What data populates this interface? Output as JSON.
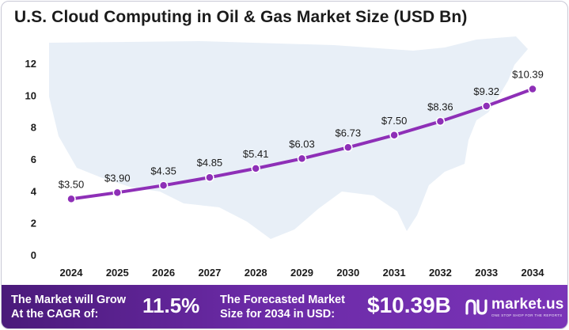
{
  "chart_data": {
    "type": "line",
    "title": "U.S. Cloud Computing in Oil & Gas Market Size (USD Bn)",
    "categories": [
      "2024",
      "2025",
      "2026",
      "2027",
      "2028",
      "2029",
      "2030",
      "2031",
      "2032",
      "2033",
      "2034"
    ],
    "values": [
      3.5,
      3.9,
      4.35,
      4.85,
      5.41,
      6.03,
      6.73,
      7.5,
      8.36,
      9.32,
      10.39
    ],
    "value_labels": [
      "$3.50",
      "$3.90",
      "$4.35",
      "$4.85",
      "$5.41",
      "$6.03",
      "$6.73",
      "$7.50",
      "$8.36",
      "$9.32",
      "$10.39"
    ],
    "yticks": [
      "0",
      "2",
      "4",
      "6",
      "8",
      "10",
      "12"
    ],
    "ylim": [
      0,
      12
    ],
    "grid": false,
    "line_color": "#8e2fb7"
  },
  "footer": {
    "cagr_label_line1": "The Market will Grow",
    "cagr_label_line2": "At the CAGR of:",
    "cagr_value": "11.5%",
    "forecast_label_line1": "The Forecasted Market",
    "forecast_label_line2": "Size for 2034 in USD:",
    "forecast_value": "$10.39B",
    "brand_name": "market.us",
    "brand_tagline": "ONE STOP SHOP FOR THE REPORTS",
    "brand_logo_icon": "market-us-logo-icon"
  },
  "colors": {
    "footer_start": "#4a1a7a",
    "footer_end": "#7a34b8",
    "map_fill": "#e8eef7"
  }
}
